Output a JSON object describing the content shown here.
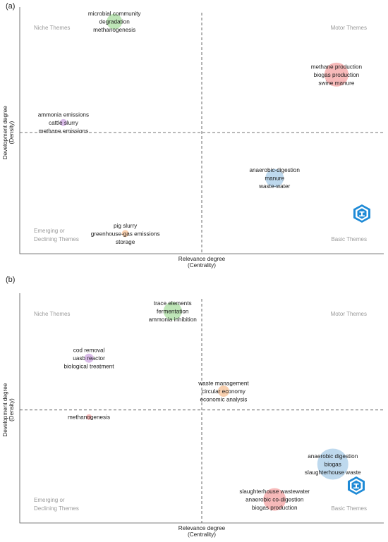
{
  "chart_data": [
    {
      "type": "scatter",
      "panel": "(a)",
      "xlabel": "Relevance degree",
      "xlabel_sub": "(Centrality)",
      "ylabel": "Development degree",
      "ylabel_sub": "(Density)",
      "quadrants": {
        "top_left": [
          "Niche Themes"
        ],
        "top_right": [
          "Motor Themes"
        ],
        "bottom_left": [
          "Emerging or",
          "Declining Themes"
        ],
        "bottom_right": [
          "Basic Themes"
        ]
      },
      "logo": "shield-logo-icon",
      "points": [
        {
          "x": 0.26,
          "y": 0.92,
          "size": 18,
          "color": "#b8e3b0",
          "labels": [
            "microbial community",
            "degradation",
            "methanogenesis"
          ]
        },
        {
          "x": 0.87,
          "y": 0.71,
          "size": 30,
          "color": "#f6b3b3",
          "labels": [
            "methane production",
            "biogas production",
            "swine manure"
          ]
        },
        {
          "x": 0.12,
          "y": 0.52,
          "size": 6,
          "color": "#d7b6e8",
          "labels": [
            "ammonia emissions",
            "cattle slurry",
            "methane emissions"
          ]
        },
        {
          "x": 0.7,
          "y": 0.3,
          "size": 22,
          "color": "#b7d5ec",
          "labels": [
            "anaerobic-digestion",
            "manure",
            "waste-water"
          ]
        },
        {
          "x": 0.29,
          "y": 0.08,
          "size": 6,
          "color": "#f8cba6",
          "labels": [
            "pig slurry",
            "greenhouse-gas emissions",
            "storage"
          ]
        }
      ]
    },
    {
      "type": "scatter",
      "panel": "(b)",
      "xlabel": "Relevance degree",
      "xlabel_sub": "(Centrality)",
      "ylabel": "Development degree",
      "ylabel_sub": "(Density)",
      "quadrants": {
        "top_left": [
          "Niche Themes"
        ],
        "top_right": [
          "Motor Themes"
        ],
        "bottom_left": [
          "Emerging or",
          "Declining Themes"
        ],
        "bottom_right": [
          "Basic Themes"
        ]
      },
      "logo": "shield-logo-icon",
      "points": [
        {
          "x": 0.42,
          "y": 0.9,
          "size": 22,
          "color": "#b8e3b0",
          "labels": [
            "trace elements",
            "fermentation",
            "ammonia inhibition"
          ]
        },
        {
          "x": 0.19,
          "y": 0.7,
          "size": 9,
          "color": "#d7b6e8",
          "labels": [
            "cod removal",
            "uasb reactor",
            "biological treatment"
          ]
        },
        {
          "x": 0.56,
          "y": 0.56,
          "size": 12,
          "color": "#f8cba6",
          "labels": [
            "waste management",
            "circular economy",
            "economic analysis"
          ]
        },
        {
          "x": 0.19,
          "y": 0.45,
          "size": 4,
          "color": "#f6b3b3",
          "labels": [
            "methanogenesis"
          ]
        },
        {
          "x": 0.86,
          "y": 0.25,
          "size": 40,
          "color": "#b7d5ec",
          "labels": [
            "anaerobic digestion",
            "biogas",
            "slaughterhouse waste"
          ]
        },
        {
          "x": 0.7,
          "y": 0.1,
          "size": 28,
          "color": "#f6b3b3",
          "labels": [
            "slaughterhouse wastewater",
            "anaerobic co-digestion",
            "biogas production"
          ]
        }
      ]
    }
  ]
}
